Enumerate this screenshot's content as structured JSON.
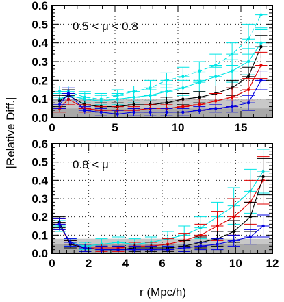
{
  "chart_data": [
    {
      "type": "line",
      "annotation": "0.5 < μ < 0.8",
      "xlim": [
        0,
        17.5
      ],
      "ylim": [
        0,
        0.6
      ],
      "x_ticks": [
        0,
        5,
        10,
        15
      ],
      "x_tick_labels": [
        "0",
        "5",
        "10",
        "15"
      ],
      "y_ticks": [
        0,
        0.1,
        0.2,
        0.3,
        0.4,
        0.5,
        0.6
      ],
      "y_tick_labels": [
        "0.0",
        "0.1",
        "0.2",
        "0.3",
        "0.4",
        "0.5",
        "0.6"
      ],
      "x_grid": [
        5,
        10,
        15
      ],
      "y_grid": [
        0.1,
        0.2,
        0.3,
        0.4,
        0.5
      ],
      "bands": [
        {
          "color": "#c8c8c8",
          "y": [
            0,
            0.1
          ]
        },
        {
          "color": "#a9a9a9",
          "y": [
            0,
            0.05
          ]
        }
      ],
      "series": [
        {
          "color": "#00e5e5",
          "dashed": true,
          "x": [
            0.6,
            1.3,
            2.6,
            3.9,
            5.2,
            6.5,
            7.8,
            9.1,
            10.4,
            11.7,
            13.0,
            14.3,
            15.6,
            16.6
          ],
          "y": [
            0.14,
            0.14,
            0.11,
            0.1,
            0.12,
            0.14,
            0.16,
            0.2,
            0.22,
            0.25,
            0.28,
            0.34,
            0.42,
            0.55
          ],
          "err": [
            0.03,
            0.03,
            0.03,
            0.03,
            0.03,
            0.03,
            0.04,
            0.04,
            0.05,
            0.05,
            0.06,
            0.06,
            0.08,
            0.08
          ]
        },
        {
          "color": "#00e5e5",
          "dashed": false,
          "x": [
            0.6,
            1.3,
            2.6,
            3.9,
            5.2,
            6.5,
            7.8,
            9.1,
            10.4,
            11.7,
            13.0,
            14.3,
            15.6,
            16.6
          ],
          "y": [
            0.1,
            0.12,
            0.1,
            0.09,
            0.1,
            0.11,
            0.12,
            0.14,
            0.16,
            0.19,
            0.22,
            0.25,
            0.3,
            0.4
          ],
          "err": [
            0.03,
            0.03,
            0.03,
            0.03,
            0.03,
            0.03,
            0.03,
            0.04,
            0.04,
            0.05,
            0.05,
            0.06,
            0.07,
            0.08
          ]
        },
        {
          "color": "#000000",
          "dashed": false,
          "x": [
            0.6,
            1.3,
            2.6,
            3.9,
            5.2,
            6.5,
            7.8,
            9.1,
            10.4,
            11.7,
            13.0,
            14.3,
            15.6,
            16.6
          ],
          "y": [
            0.09,
            0.12,
            0.07,
            0.06,
            0.06,
            0.07,
            0.07,
            0.08,
            0.1,
            0.11,
            0.13,
            0.16,
            0.22,
            0.38
          ],
          "err": [
            0.03,
            0.03,
            0.02,
            0.02,
            0.02,
            0.02,
            0.02,
            0.03,
            0.03,
            0.03,
            0.04,
            0.04,
            0.05,
            0.06
          ]
        },
        {
          "color": "#e00000",
          "dashed": false,
          "x": [
            0.6,
            1.3,
            2.6,
            3.9,
            5.2,
            6.5,
            7.8,
            9.1,
            10.4,
            11.7,
            13.0,
            14.3,
            15.6,
            16.6
          ],
          "y": [
            0.05,
            0.1,
            0.05,
            0.04,
            0.04,
            0.04,
            0.05,
            0.05,
            0.06,
            0.07,
            0.09,
            0.11,
            0.15,
            0.28
          ],
          "err": [
            0.02,
            0.03,
            0.02,
            0.02,
            0.02,
            0.02,
            0.02,
            0.02,
            0.03,
            0.03,
            0.04,
            0.05,
            0.06,
            0.07
          ]
        },
        {
          "color": "#0000e0",
          "dashed": false,
          "x": [
            0.6,
            1.3,
            2.6,
            3.9,
            5.2,
            6.5,
            7.8,
            9.1,
            10.4,
            11.7,
            13.0,
            14.3,
            15.6,
            16.6
          ],
          "y": [
            0.07,
            0.13,
            0.04,
            0.03,
            0.02,
            0.03,
            0.03,
            0.03,
            0.03,
            0.04,
            0.05,
            0.06,
            0.08,
            0.2
          ],
          "err": [
            0.02,
            0.03,
            0.02,
            0.02,
            0.02,
            0.02,
            0.02,
            0.02,
            0.02,
            0.02,
            0.02,
            0.03,
            0.04,
            0.05
          ]
        }
      ]
    },
    {
      "type": "line",
      "annotation": "0.8 < μ",
      "xlim": [
        0,
        12
      ],
      "ylim": [
        0,
        0.6
      ],
      "x_ticks": [
        0,
        2,
        4,
        6,
        8,
        10,
        12
      ],
      "x_tick_labels": [
        "0",
        "2",
        "4",
        "6",
        "8",
        "10",
        "12"
      ],
      "y_ticks": [
        0,
        0.1,
        0.2,
        0.3,
        0.4,
        0.5,
        0.6
      ],
      "y_tick_labels": [
        "0.0",
        "0.1",
        "0.2",
        "0.3",
        "0.4",
        "0.5",
        "0.6"
      ],
      "x_grid": [
        2,
        4,
        6,
        8,
        10
      ],
      "y_grid": [
        0.1,
        0.2,
        0.3,
        0.4,
        0.5
      ],
      "bands": [
        {
          "color": "#c8c8c8",
          "y": [
            0,
            0.08
          ]
        },
        {
          "color": "#a9a9a9",
          "y": [
            0,
            0.05
          ]
        }
      ],
      "series": [
        {
          "color": "#00e5e5",
          "dashed": false,
          "x": [
            0.4,
            1.0,
            1.8,
            2.7,
            3.6,
            4.5,
            5.4,
            6.3,
            7.2,
            8.1,
            9.0,
            9.9,
            10.8,
            11.5
          ],
          "y": [
            0.15,
            0.06,
            0.04,
            0.05,
            0.06,
            0.05,
            0.06,
            0.08,
            0.1,
            0.14,
            0.2,
            0.26,
            0.34,
            0.45
          ],
          "err": [
            0.03,
            0.02,
            0.02,
            0.03,
            0.03,
            0.03,
            0.03,
            0.04,
            0.05,
            0.06,
            0.08,
            0.1,
            0.12,
            0.12
          ]
        },
        {
          "color": "#e00000",
          "dashed": false,
          "x": [
            0.4,
            1.0,
            1.8,
            2.7,
            3.6,
            4.5,
            5.4,
            6.3,
            7.2,
            8.1,
            9.0,
            9.9,
            10.8,
            11.5
          ],
          "y": [
            0.16,
            0.05,
            0.03,
            0.03,
            0.03,
            0.04,
            0.04,
            0.05,
            0.07,
            0.1,
            0.15,
            0.2,
            0.28,
            0.4
          ],
          "err": [
            0.03,
            0.02,
            0.02,
            0.02,
            0.02,
            0.02,
            0.02,
            0.03,
            0.04,
            0.06,
            0.08,
            0.1,
            0.12,
            0.13
          ]
        },
        {
          "color": "#000000",
          "dashed": false,
          "x": [
            0.4,
            1.0,
            1.8,
            2.7,
            3.6,
            4.5,
            5.4,
            6.3,
            7.2,
            8.1,
            9.0,
            9.9,
            10.8,
            11.5
          ],
          "y": [
            0.17,
            0.05,
            0.03,
            0.02,
            0.02,
            0.03,
            0.03,
            0.03,
            0.04,
            0.06,
            0.08,
            0.12,
            0.2,
            0.42
          ],
          "err": [
            0.03,
            0.02,
            0.02,
            0.02,
            0.02,
            0.02,
            0.02,
            0.02,
            0.03,
            0.03,
            0.04,
            0.06,
            0.08,
            0.1
          ]
        },
        {
          "color": "#0000e0",
          "dashed": false,
          "x": [
            0.4,
            1.0,
            1.8,
            2.7,
            3.6,
            4.5,
            5.4,
            6.3,
            7.2,
            8.1,
            9.0,
            9.9,
            10.8,
            11.5
          ],
          "y": [
            0.16,
            0.06,
            0.03,
            0.02,
            0.02,
            0.02,
            0.02,
            0.02,
            0.03,
            0.04,
            0.05,
            0.07,
            0.09,
            0.15
          ],
          "err": [
            0.03,
            0.02,
            0.02,
            0.02,
            0.02,
            0.02,
            0.02,
            0.02,
            0.02,
            0.02,
            0.03,
            0.03,
            0.04,
            0.06
          ]
        }
      ]
    }
  ],
  "ylabel": "|Relative Diff.|",
  "xlabel": "r (Mpc/h)"
}
